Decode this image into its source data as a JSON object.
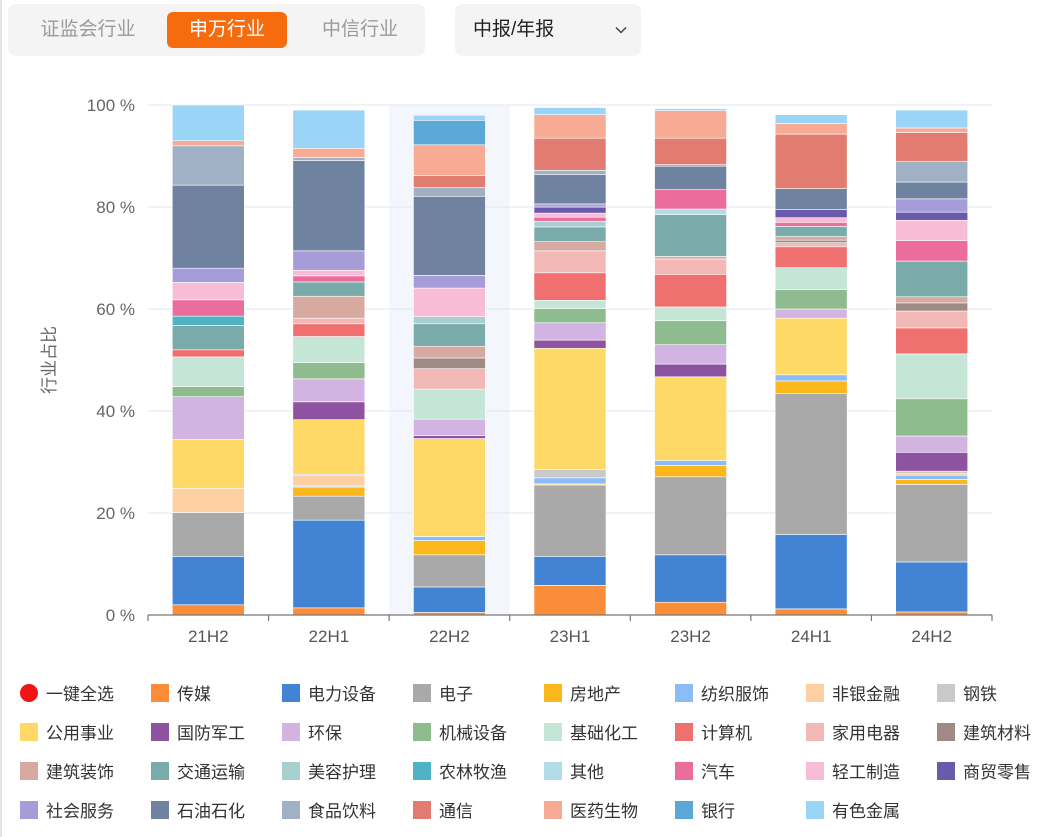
{
  "tabs": [
    {
      "label": "证监会行业",
      "active": false
    },
    {
      "label": "申万行业",
      "active": true
    },
    {
      "label": "中信行业",
      "active": false
    }
  ],
  "period_select": {
    "value": "中报/年报",
    "icon": "chevron-down-icon"
  },
  "colors": {
    "accent": "#f76b0f",
    "select_all_dot": "#f01414",
    "highlight_band": "#f3f6fc"
  },
  "chart_data": {
    "type": "bar",
    "stacked": true,
    "title": "",
    "xlabel": "",
    "ylabel": "行业占比",
    "categories": [
      "21H2",
      "22H1",
      "22H2",
      "23H1",
      "23H2",
      "24H1",
      "24H2"
    ],
    "highlighted_category": "22H2",
    "ylim": [
      0,
      100
    ],
    "yticks": [
      0,
      20,
      40,
      60,
      80,
      100
    ],
    "ytick_labels": [
      "0 %",
      "20 %",
      "40 %",
      "60 %",
      "80 %",
      "100 %"
    ],
    "grid": true,
    "legend_position": "bottom",
    "select_all_label": "一键全选",
    "series": [
      {
        "name": "传媒",
        "color": "#fb8c3a",
        "values": [
          2,
          1.4,
          0.5,
          5.8,
          2.5,
          1.2,
          0.6
        ]
      },
      {
        "name": "电力设备",
        "color": "#4283d3",
        "values": [
          9.5,
          17.2,
          5,
          5.7,
          9.3,
          14.6,
          9.8
        ]
      },
      {
        "name": "电子",
        "color": "#a9a9a9",
        "values": [
          8.6,
          4.7,
          6.3,
          14,
          15.3,
          27.6,
          15.2
        ]
      },
      {
        "name": "房地产",
        "color": "#fcb71a",
        "values": [
          0,
          1.8,
          2.8,
          0.2,
          2.2,
          2.5,
          1
        ]
      },
      {
        "name": "纺织服饰",
        "color": "#8cbcf7",
        "values": [
          0,
          0.2,
          0.8,
          1.2,
          1,
          1.2,
          0.8
        ]
      },
      {
        "name": "非银金融",
        "color": "#fecfa0",
        "values": [
          4.7,
          2,
          0,
          0,
          0,
          0,
          0.3
        ]
      },
      {
        "name": "钢铁",
        "color": "#c9c9c9",
        "values": [
          0,
          0.3,
          0,
          1.6,
          0,
          0,
          0.5
        ]
      },
      {
        "name": "公用事业",
        "color": "#ffd966",
        "values": [
          9.6,
          10.7,
          19.2,
          23.8,
          16.4,
          11.1,
          0
        ]
      },
      {
        "name": "国防军工",
        "color": "#8d53a0",
        "values": [
          0,
          3.5,
          0.6,
          1.6,
          2.5,
          0,
          3.7
        ]
      },
      {
        "name": "环保",
        "color": "#d1b4e2",
        "values": [
          8.4,
          4.5,
          3.2,
          3.4,
          3.8,
          1.8,
          3.2
        ]
      },
      {
        "name": "机械设备",
        "color": "#8fbc8f",
        "values": [
          2,
          3.2,
          0,
          2.8,
          4.7,
          3.8,
          7.3
        ]
      },
      {
        "name": "基础化工",
        "color": "#c5e5d6",
        "values": [
          5.8,
          5.1,
          5.9,
          1.6,
          2.7,
          4.3,
          8.8
        ]
      },
      {
        "name": "计算机",
        "color": "#f07070",
        "values": [
          1.4,
          2.5,
          0,
          5.4,
          6.4,
          4.1,
          5.1
        ]
      },
      {
        "name": "家用电器",
        "color": "#f2b8b5",
        "values": [
          0,
          1.1,
          4,
          4.3,
          3,
          0.8,
          3.3
        ]
      },
      {
        "name": "建筑材料",
        "color": "#a08a84",
        "values": [
          0,
          0,
          2.1,
          0,
          0,
          0.5,
          1.6
        ]
      },
      {
        "name": "建筑装饰",
        "color": "#d6aaa0",
        "values": [
          0,
          4.3,
          2.3,
          1.8,
          0.5,
          0.7,
          1.2
        ]
      },
      {
        "name": "交通运输",
        "color": "#79abab",
        "values": [
          4.8,
          2.8,
          4.4,
          2.9,
          8.2,
          2,
          7
        ]
      },
      {
        "name": "美容护理",
        "color": "#a7cfcf",
        "values": [
          0,
          0,
          1.4,
          1.1,
          0,
          0,
          0
        ]
      },
      {
        "name": "农林牧渔",
        "color": "#4fb3c4",
        "values": [
          1.8,
          0,
          0,
          0,
          0,
          0,
          0
        ]
      },
      {
        "name": "其他",
        "color": "#b2dde6",
        "values": [
          0,
          0,
          0,
          0,
          1.1,
          0,
          0
        ]
      },
      {
        "name": "汽车",
        "color": "#eb6d9c",
        "values": [
          3.2,
          1.2,
          0,
          0.8,
          3.8,
          0.8,
          4
        ]
      },
      {
        "name": "轻工制造",
        "color": "#f7bdd8",
        "values": [
          3.4,
          1.1,
          5.6,
          0.8,
          0,
          0.9,
          4
        ]
      },
      {
        "name": "商贸零售",
        "color": "#6a5aac",
        "values": [
          0,
          0,
          0,
          1.2,
          0,
          1.6,
          1.6
        ]
      },
      {
        "name": "社会服务",
        "color": "#a59cd8",
        "values": [
          2.8,
          3.8,
          2.5,
          0.6,
          0,
          0,
          2.6
        ]
      },
      {
        "name": "石油石化",
        "color": "#6f82a0",
        "values": [
          16.3,
          17.7,
          15.5,
          5.8,
          4.6,
          4.1,
          3.3
        ]
      },
      {
        "name": "食品饮料",
        "color": "#a0b0c5",
        "values": [
          7.7,
          0.6,
          1.7,
          0.8,
          0.3,
          0,
          4
        ]
      },
      {
        "name": "通信",
        "color": "#e27c70",
        "values": [
          0,
          0,
          2.4,
          6.3,
          5.2,
          10.7,
          5.7
        ]
      },
      {
        "name": "医药生物",
        "color": "#f7ab95",
        "values": [
          1,
          1.8,
          6,
          4.6,
          5.4,
          2.1,
          0.9
        ]
      },
      {
        "name": "银行",
        "color": "#5ba7d8",
        "values": [
          0,
          0,
          4.8,
          0,
          0,
          0,
          0
        ]
      },
      {
        "name": "有色金属",
        "color": "#9ad4f7",
        "values": [
          7,
          7.5,
          1,
          1.4,
          0.4,
          1.7,
          3.5
        ]
      }
    ]
  }
}
